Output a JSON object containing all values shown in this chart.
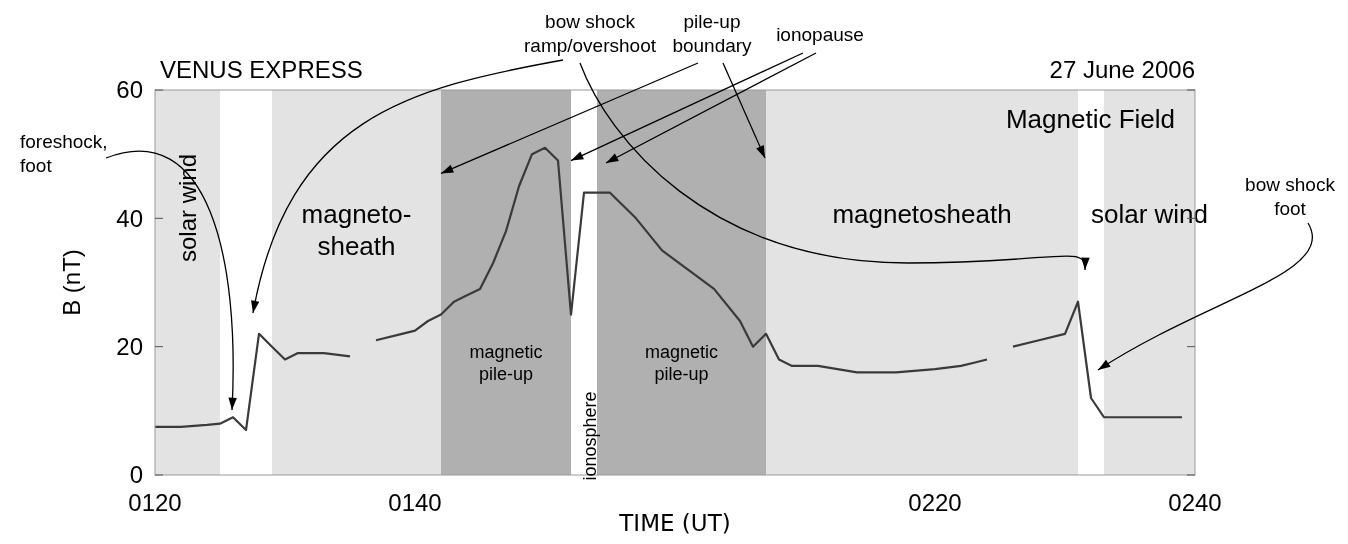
{
  "chart_data": {
    "type": "line",
    "xlabel": "TIME (UT)",
    "ylabel": "B (nT)",
    "xlim": [
      "2006-06-27T01:20",
      "2006-06-27T02:40"
    ],
    "xticks": [
      {
        "value": "2006-06-27T01:20",
        "label": "0120"
      },
      {
        "value": "2006-06-27T01:40",
        "label": "0140"
      },
      {
        "value": "2006-06-27T02:20",
        "label": "0220"
      },
      {
        "value": "2006-06-27T02:40",
        "label": "0240"
      }
    ],
    "ylim": [
      0,
      60
    ],
    "yticks": [
      0,
      20,
      40,
      60
    ],
    "grid": false,
    "series": [
      {
        "color": "#3a3a3a",
        "x": [
          "2006-06-27T01:20",
          "2006-06-27T01:22",
          "2006-06-27T01:24",
          "2006-06-27T01:25",
          "2006-06-27T01:26",
          "2006-06-27T01:27",
          "2006-06-27T01:28",
          "2006-06-27T01:29",
          "2006-06-27T01:30",
          "2006-06-27T01:31",
          "2006-06-27T01:33",
          "2006-06-27T01:35",
          "2006-06-27T01:36",
          "2006-06-27T01:37",
          "2006-06-27T01:39",
          "2006-06-27T01:40",
          "2006-06-27T01:41",
          "2006-06-27T01:42",
          "2006-06-27T01:43",
          "2006-06-27T01:44",
          "2006-06-27T01:45",
          "2006-06-27T01:46",
          "2006-06-27T01:47",
          "2006-06-27T01:48",
          "2006-06-27T01:49",
          "2006-06-27T01:50",
          "2006-06-27T01:51",
          "2006-06-27T01:52",
          "2006-06-27T01:53",
          "2006-06-27T01:54",
          "2006-06-27T01:55",
          "2006-06-27T01:56",
          "2006-06-27T01:57",
          "2006-06-27T01:59",
          "2006-06-27T02:01",
          "2006-06-27T02:03",
          "2006-06-27T02:05",
          "2006-06-27T02:06",
          "2006-06-27T02:07",
          "2006-06-27T02:08",
          "2006-06-27T02:09",
          "2006-06-27T02:11",
          "2006-06-27T02:14",
          "2006-06-27T02:17",
          "2006-06-27T02:20",
          "2006-06-27T02:22",
          "2006-06-27T02:23",
          "2006-06-27T02:24",
          "2006-06-27T02:25",
          "2006-06-27T02:26",
          "2006-06-27T02:28",
          "2006-06-27T02:30",
          "2006-06-27T02:31",
          "2006-06-27T02:32",
          "2006-06-27T02:33",
          "2006-06-27T02:35",
          "2006-06-27T02:38",
          "2006-06-27T02:39"
        ],
        "values": [
          7.5,
          7.5,
          7.8,
          8,
          9,
          7,
          22,
          20,
          18,
          19,
          19,
          18.5,
          null,
          21,
          22,
          22.5,
          24,
          25,
          27,
          28,
          29,
          33,
          38,
          45,
          50,
          51,
          49,
          25,
          44,
          44,
          44,
          42,
          40,
          35,
          32,
          29,
          24,
          20,
          22,
          18,
          17,
          17,
          16,
          16,
          16.5,
          17,
          17.5,
          18,
          null,
          20,
          21,
          22,
          27,
          12,
          9,
          9,
          9,
          9
        ]
      }
    ],
    "bands": [
      {
        "axis": "x",
        "from": "2006-06-27T01:20",
        "to": "2006-06-27T01:25",
        "label": "solar wind",
        "color": "#e3e3e3"
      },
      {
        "axis": "x",
        "from": "2006-06-27T01:29",
        "to": "2006-06-27T01:42",
        "label": "magneto-\nsheath",
        "color": "#e3e3e3"
      },
      {
        "axis": "x",
        "from": "2006-06-27T01:42",
        "to": "2006-06-27T01:52",
        "label": "magnetic\npile-up",
        "color": "#b0b0b0"
      },
      {
        "axis": "x",
        "from": "2006-06-27T01:54",
        "to": "2006-06-27T02:07",
        "label": "magnetic\npile-up",
        "color": "#b0b0b0"
      },
      {
        "axis": "x",
        "from": "2006-06-27T02:07",
        "to": "2006-06-27T02:31",
        "label": "magnetosheath",
        "color": "#e3e3e3"
      },
      {
        "axis": "x",
        "from": "2006-06-27T02:33",
        "to": "2006-06-27T02:40",
        "label": "solar wind",
        "color": "#e3e3e3"
      }
    ],
    "annotations": [
      "VENUS EXPRESS",
      "27 June 2006",
      "Magnetic Field",
      "foreshock,\nfoot",
      "bow shock\nramp/overshoot",
      {
        "text": "pile-up\nboundary",
        "x": "2006-06-27T01:42",
        "y": 47
      },
      {
        "text": "ionopause",
        "x": "2006-06-27T01:52",
        "y": 49
      },
      "bow shock\nfoot",
      "ionosphere"
    ]
  }
}
